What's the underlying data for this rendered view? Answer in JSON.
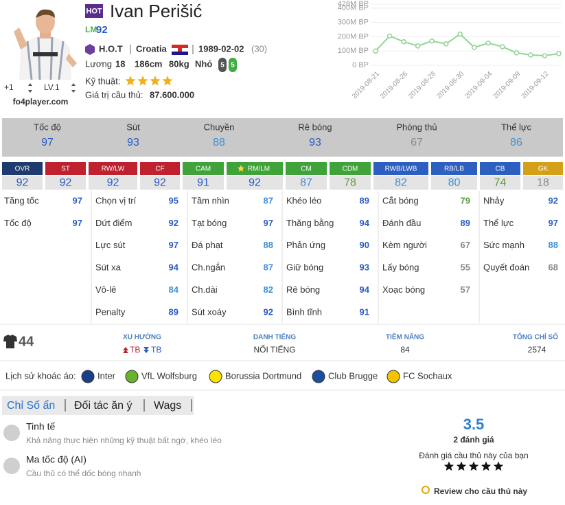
{
  "header": {
    "badge": "HOT",
    "name": "Ivan Perišić",
    "position": "LM",
    "rating": 92,
    "season": "H.O.T",
    "nation": "Croatia",
    "birth_date": "1989-02-02",
    "age": "(30)",
    "salary_label": "Lương",
    "salary": 18,
    "height": "186cm",
    "weight": "80kg",
    "body_type": "Nhỏ",
    "left_foot": 5,
    "right_foot": 5,
    "skill_label": "Kỹ thuật:",
    "skill_stars": 4,
    "value_label": "Giá trị cầu thủ:",
    "value": "87.600.000",
    "upgrade": "+1",
    "level": "LV.1",
    "site": "fo4player.com"
  },
  "chart_data": {
    "type": "line",
    "categories": [
      "2019-08-21",
      null,
      "2019-08-26",
      null,
      "2019-08-28",
      null,
      "2019-08-30",
      null,
      "2019-09-04",
      null,
      "2019-09-09",
      null,
      "2019-09-12",
      null
    ],
    "values": [
      100000000,
      205000000,
      165000000,
      135000000,
      170000000,
      150000000,
      218000000,
      125000000,
      155000000,
      130000000,
      87000000,
      72000000,
      67000000,
      82000000
    ],
    "color": "#90d490",
    "ylim": [
      0,
      428000000
    ],
    "yticks": [
      {
        "value": 0,
        "label": "0 BP"
      },
      {
        "value": 100000000,
        "label": "100M BP"
      },
      {
        "value": 200000000,
        "label": "200M BP"
      },
      {
        "value": 300000000,
        "label": "300M BP"
      },
      {
        "value": 400000000,
        "label": "400M BP"
      },
      {
        "value": 428000000,
        "label": "428M BP"
      }
    ],
    "grid": true
  },
  "summary": [
    {
      "name": "Tốc độ",
      "value": 97
    },
    {
      "name": "Sút",
      "value": 93
    },
    {
      "name": "Chuyền",
      "value": 88
    },
    {
      "name": "Rê bóng",
      "value": 93
    },
    {
      "name": "Phòng thủ",
      "value": 67
    },
    {
      "name": "Thể lực",
      "value": 86
    }
  ],
  "positions": [
    {
      "code": "OVR",
      "value": 92,
      "color": "#1f3a6e"
    },
    {
      "code": "ST",
      "value": 92,
      "color": "#c0212f"
    },
    {
      "code": "RW/LW",
      "value": 92,
      "color": "#c0212f"
    },
    {
      "code": "CF",
      "value": 92,
      "color": "#c0212f"
    },
    {
      "code": "CAM",
      "value": 91,
      "color": "#3fa33a"
    },
    {
      "code": "RM/LM",
      "value": 92,
      "color": "#3fa33a"
    },
    {
      "code": "CM",
      "value": 87,
      "color": "#3fa33a"
    },
    {
      "code": "CDM",
      "value": 78,
      "color": "#3fa33a"
    },
    {
      "code": "RWB/LWB",
      "value": 82,
      "color": "#2d5fc0"
    },
    {
      "code": "RB/LB",
      "value": 80,
      "color": "#2d5fc0"
    },
    {
      "code": "CB",
      "value": 74,
      "color": "#2d5fc0"
    },
    {
      "code": "GK",
      "value": 18,
      "color": "#d4a017"
    }
  ],
  "stats": [
    [
      {
        "name": "Tăng tốc",
        "value": 97
      },
      {
        "name": "Tốc độ",
        "value": 97
      }
    ],
    [
      {
        "name": "Chọn vị trí",
        "value": 95
      },
      {
        "name": "Dứt điểm",
        "value": 92
      },
      {
        "name": "Lực sút",
        "value": 97
      },
      {
        "name": "Sút xa",
        "value": 94
      },
      {
        "name": "Vô-lê",
        "value": 84
      },
      {
        "name": "Penalty",
        "value": 89
      }
    ],
    [
      {
        "name": "Tầm nhìn",
        "value": 87
      },
      {
        "name": "Tạt bóng",
        "value": 97
      },
      {
        "name": "Đá phạt",
        "value": 88
      },
      {
        "name": "Ch.ngắn",
        "value": 87
      },
      {
        "name": "Ch.dài",
        "value": 82
      },
      {
        "name": "Sút xoáy",
        "value": 92
      }
    ],
    [
      {
        "name": "Khéo léo",
        "value": 89
      },
      {
        "name": "Thăng bằng",
        "value": 94
      },
      {
        "name": "Phản ứng",
        "value": 90
      },
      {
        "name": "Giữ bóng",
        "value": 93
      },
      {
        "name": "Rê bóng",
        "value": 94
      },
      {
        "name": "Bình tĩnh",
        "value": 91
      }
    ],
    [
      {
        "name": "Cắt bóng",
        "value": 79
      },
      {
        "name": "Đánh đầu",
        "value": 89
      },
      {
        "name": "Kèm người",
        "value": 67
      },
      {
        "name": "Lấy bóng",
        "value": 55
      },
      {
        "name": "Xoạc bóng",
        "value": 57
      }
    ],
    [
      {
        "name": "Nhảy",
        "value": 92
      },
      {
        "name": "Thể lực",
        "value": 97
      },
      {
        "name": "Sức mạnh",
        "value": 88
      },
      {
        "name": "Quyết đoán",
        "value": 68
      }
    ]
  ],
  "footer": {
    "shirt": 44,
    "trend_label": "XU HƯỚNG",
    "trend": [
      "TB",
      "TB"
    ],
    "fame_label": "DANH TIẾNG",
    "fame": "NỔI TIẾNG",
    "potential_label": "TIỀM NĂNG",
    "potential": 84,
    "total_label": "TỔNG CHỈ SỐ",
    "total": 2574
  },
  "clubs": {
    "label": "Lịch sử khoác áo:",
    "items": [
      "Inter",
      "VfL Wolfsburg",
      "Borussia Dortmund",
      "Club Brugge",
      "FC Sochaux"
    ]
  },
  "tabs": [
    "Chỉ Số ẩn",
    "Đối tác ăn ý",
    "Wags"
  ],
  "traits": [
    {
      "name": "Tinh tế",
      "description": "Khả năng thực hiện những kỹ thuật bất ngờ, khéo léo"
    },
    {
      "name": "Ma tốc độ (AI)",
      "description": "Cầu thủ có thể dốc bóng nhanh"
    }
  ],
  "rating": {
    "score": 3.5,
    "count": "2 đánh giá",
    "prompt": "Đánh giá cầu thủ này của bạn",
    "stars": 5,
    "review": "Review cho cầu thủ này"
  }
}
